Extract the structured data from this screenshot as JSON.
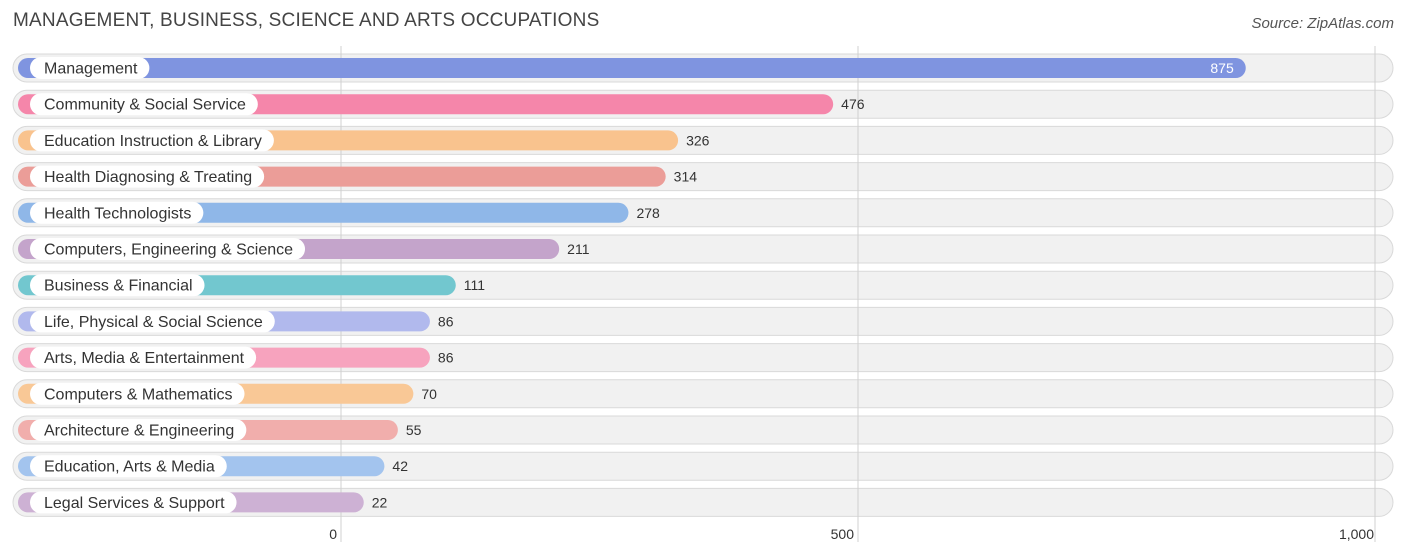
{
  "header": {
    "title": "MANAGEMENT, BUSINESS, SCIENCE AND ARTS OCCUPATIONS",
    "source": "Source: ZipAtlas.com"
  },
  "chart_data": {
    "type": "bar",
    "orientation": "horizontal",
    "title": "MANAGEMENT, BUSINESS, SCIENCE AND ARTS OCCUPATIONS",
    "xlim": [
      0,
      1000
    ],
    "ticks": [
      {
        "value": 0,
        "label": "0"
      },
      {
        "value": 500,
        "label": "500"
      },
      {
        "value": 1000,
        "label": "1,000"
      }
    ],
    "grid": true,
    "categories": [
      "Management",
      "Community & Social Service",
      "Education Instruction & Library",
      "Health Diagnosing & Treating",
      "Health Technologists",
      "Computers, Engineering & Science",
      "Business & Financial",
      "Life, Physical & Social Science",
      "Arts, Media & Entertainment",
      "Computers & Mathematics",
      "Architecture & Engineering",
      "Education, Arts & Media",
      "Legal Services & Support"
    ],
    "values": [
      875,
      476,
      326,
      314,
      278,
      211,
      111,
      86,
      86,
      70,
      55,
      42,
      22
    ],
    "colors": [
      "#7f94e0",
      "#f586aa",
      "#f9c38e",
      "#eb9d98",
      "#8fb7e8",
      "#c4a4cb",
      "#72c7cf",
      "#b1b9ed",
      "#f7a3be",
      "#f9c896",
      "#f1aeac",
      "#a3c4ee",
      "#cdb1d4"
    ]
  }
}
